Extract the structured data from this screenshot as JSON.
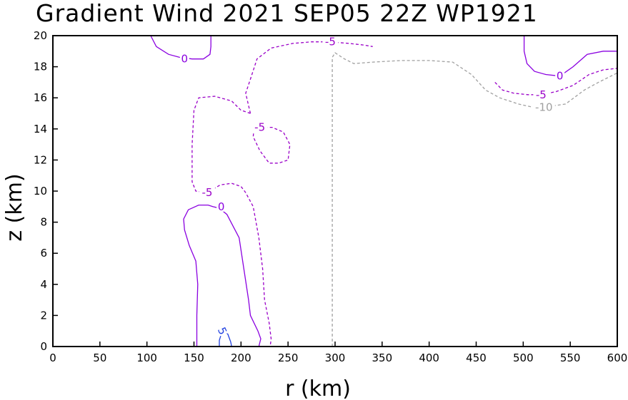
{
  "chart_data": {
    "type": "contour",
    "title": "Gradient Wind 2021 SEP05 22Z  WP1921",
    "xlabel": "r (km)",
    "ylabel": "z (km)",
    "xlim": [
      0,
      600
    ],
    "ylim": [
      0,
      20
    ],
    "xticks": [
      "0",
      "50",
      "100",
      "150",
      "200",
      "250",
      "300",
      "350",
      "400",
      "450",
      "500",
      "550",
      "600"
    ],
    "yticks": [
      "0",
      "2",
      "4",
      "6",
      "8",
      "10",
      "12",
      "14",
      "16",
      "18",
      "20"
    ],
    "grid": false,
    "colors": {
      "zero": "#8a00e0",
      "neg5": "#9a00c8",
      "neg10": "#a0a0a0",
      "pos5": "#2040e0"
    },
    "contours": [
      {
        "level": 0,
        "label": "0",
        "color": "#8a00e0",
        "dash": false,
        "label_at": [
          140,
          18.5
        ],
        "points": [
          [
            104,
            20
          ],
          [
            110,
            19.3
          ],
          [
            123,
            18.8
          ],
          [
            135,
            18.6
          ],
          [
            148,
            18.5
          ],
          [
            160,
            18.5
          ],
          [
            167,
            18.8
          ],
          [
            168,
            19.3
          ],
          [
            168,
            20
          ]
        ]
      },
      {
        "level": 0,
        "label": "0",
        "color": "#8a00e0",
        "dash": false,
        "label_at": [
          179,
          9.0
        ],
        "points": [
          [
            153,
            0
          ],
          [
            153,
            2
          ],
          [
            154,
            4
          ],
          [
            152,
            5.5
          ],
          [
            145,
            6.5
          ],
          [
            140,
            7.5
          ],
          [
            139,
            8.2
          ],
          [
            144,
            8.8
          ],
          [
            155,
            9.1
          ],
          [
            165,
            9.1
          ],
          [
            170,
            9.0
          ],
          [
            177,
            8.9
          ],
          [
            185,
            8.5
          ],
          [
            198,
            7.0
          ],
          [
            203,
            5.0
          ],
          [
            208,
            3.0
          ],
          [
            210,
            2.0
          ],
          [
            218,
            1.0
          ],
          [
            221,
            0.5
          ],
          [
            219,
            0
          ]
        ]
      },
      {
        "level": 0,
        "label": "0",
        "color": "#8a00e0",
        "dash": false,
        "label_at": [
          539,
          17.4
        ],
        "points": [
          [
            501,
            20
          ],
          [
            501,
            19.0
          ],
          [
            504,
            18.2
          ],
          [
            512,
            17.7
          ],
          [
            524,
            17.5
          ],
          [
            539,
            17.4
          ],
          [
            553,
            18.0
          ],
          [
            568,
            18.8
          ],
          [
            585,
            19.0
          ],
          [
            600,
            19.0
          ]
        ]
      },
      {
        "level": -5,
        "label": "-5",
        "color": "#9a00c8",
        "dash": true,
        "label_at": [
          295,
          19.6
        ],
        "points": [
          [
            210,
            15.0
          ],
          [
            208,
            15.5
          ],
          [
            205,
            16.3
          ],
          [
            210,
            17.2
          ],
          [
            217,
            18.5
          ],
          [
            232,
            19.2
          ],
          [
            255,
            19.5
          ],
          [
            275,
            19.6
          ],
          [
            295,
            19.6
          ],
          [
            315,
            19.5
          ],
          [
            330,
            19.4
          ],
          [
            340,
            19.3
          ]
        ]
      },
      {
        "level": -5,
        "label": "-5",
        "color": "#9a00c8",
        "dash": true,
        "label_at": [
          164,
          9.9
        ],
        "points": [
          [
            210,
            15.0
          ],
          [
            200,
            15.2
          ],
          [
            190,
            15.8
          ],
          [
            172,
            16.1
          ],
          [
            155,
            16.0
          ],
          [
            150,
            15.2
          ],
          [
            148,
            13.0
          ],
          [
            148,
            10.6
          ],
          [
            152,
            10.0
          ],
          [
            164,
            9.9
          ],
          [
            178,
            10.4
          ],
          [
            190,
            10.5
          ],
          [
            200,
            10.3
          ],
          [
            205,
            9.9
          ],
          [
            213,
            9.0
          ],
          [
            219,
            7.0
          ],
          [
            223,
            5.0
          ],
          [
            225,
            3.0
          ],
          [
            230,
            1.5
          ],
          [
            232,
            0.5
          ],
          [
            231,
            0
          ]
        ]
      },
      {
        "level": -5,
        "label": "-5",
        "color": "#9a00c8",
        "dash": true,
        "label_at": [
          220,
          14.1
        ],
        "points": [
          [
            220,
            14.1
          ],
          [
            233,
            14.1
          ],
          [
            245,
            13.8
          ],
          [
            252,
            13.0
          ],
          [
            250,
            12.0
          ],
          [
            240,
            11.8
          ],
          [
            230,
            11.8
          ],
          [
            220,
            12.6
          ],
          [
            213,
            13.5
          ],
          [
            214,
            14.2
          ],
          [
            220,
            14.1
          ]
        ]
      },
      {
        "level": -5,
        "label": "-5",
        "color": "#9a00c8",
        "dash": true,
        "label_at": [
          519,
          16.2
        ],
        "points": [
          [
            470,
            17.0
          ],
          [
            478,
            16.5
          ],
          [
            490,
            16.3
          ],
          [
            505,
            16.2
          ],
          [
            519,
            16.2
          ],
          [
            535,
            16.4
          ],
          [
            553,
            16.8
          ],
          [
            570,
            17.5
          ],
          [
            585,
            17.8
          ],
          [
            600,
            17.9
          ]
        ]
      },
      {
        "level": -10,
        "label": "-10",
        "color": "#a0a0a0",
        "dash": true,
        "label_at": [
          522,
          15.4
        ],
        "points": [
          [
            297,
            0
          ],
          [
            297,
            5
          ],
          [
            297,
            10
          ],
          [
            297,
            15
          ],
          [
            297,
            18.6
          ],
          [
            300,
            18.9
          ],
          [
            310,
            18.5
          ],
          [
            320,
            18.2
          ],
          [
            340,
            18.3
          ],
          [
            370,
            18.4
          ],
          [
            400,
            18.4
          ],
          [
            425,
            18.3
          ],
          [
            445,
            17.5
          ],
          [
            460,
            16.5
          ],
          [
            475,
            16.0
          ],
          [
            495,
            15.6
          ],
          [
            510,
            15.4
          ],
          [
            522,
            15.4
          ],
          [
            545,
            15.6
          ],
          [
            565,
            16.5
          ],
          [
            580,
            17.0
          ],
          [
            600,
            17.6
          ]
        ]
      },
      {
        "level": 5,
        "label": "5",
        "color": "#2040e0",
        "dash": false,
        "label_at": [
          180,
          1.0
        ],
        "points": [
          [
            177,
            0
          ],
          [
            177,
            0.4
          ],
          [
            180,
            1.0
          ],
          [
            186,
            0.8
          ],
          [
            189,
            0.3
          ],
          [
            190,
            0
          ]
        ]
      }
    ]
  }
}
